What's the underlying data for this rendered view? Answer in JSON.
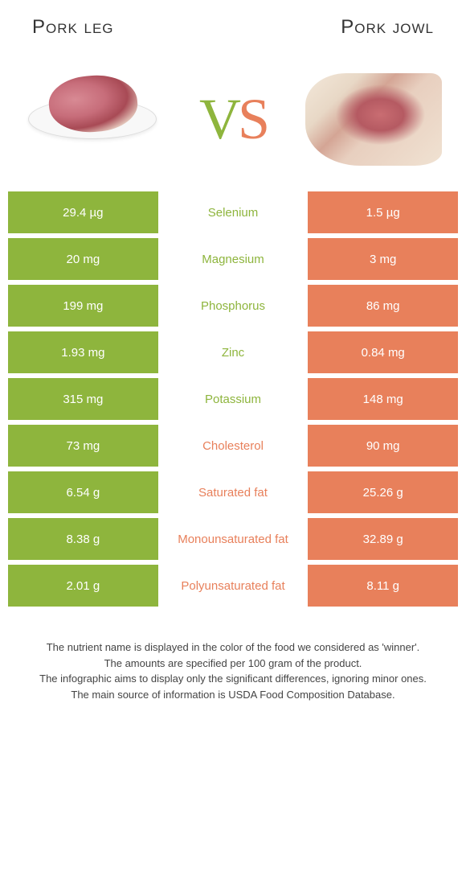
{
  "colors": {
    "left": "#8eb53d",
    "right": "#e8805b",
    "row_bg": "#ffffff"
  },
  "header": {
    "left_title": "Pork leg",
    "right_title": "Pork jowl",
    "vs_v": "V",
    "vs_s": "S"
  },
  "rows": [
    {
      "left": "29.4 µg",
      "label": "Selenium",
      "right": "1.5 µg",
      "winner": "left"
    },
    {
      "left": "20 mg",
      "label": "Magnesium",
      "right": "3 mg",
      "winner": "left"
    },
    {
      "left": "199 mg",
      "label": "Phosphorus",
      "right": "86 mg",
      "winner": "left"
    },
    {
      "left": "1.93 mg",
      "label": "Zinc",
      "right": "0.84 mg",
      "winner": "left"
    },
    {
      "left": "315 mg",
      "label": "Potassium",
      "right": "148 mg",
      "winner": "left"
    },
    {
      "left": "73 mg",
      "label": "Cholesterol",
      "right": "90 mg",
      "winner": "right"
    },
    {
      "left": "6.54 g",
      "label": "Saturated fat",
      "right": "25.26 g",
      "winner": "right"
    },
    {
      "left": "8.38 g",
      "label": "Monounsaturated fat",
      "right": "32.89 g",
      "winner": "right"
    },
    {
      "left": "2.01 g",
      "label": "Polyunsaturated fat",
      "right": "8.11 g",
      "winner": "right"
    }
  ],
  "footnotes": [
    "The nutrient name is displayed in the color of the food we considered as 'winner'.",
    "The amounts are specified per 100 gram of the product.",
    "The infographic aims to display only the significant differences, ignoring minor ones.",
    "The main source of information is USDA Food Composition Database."
  ]
}
